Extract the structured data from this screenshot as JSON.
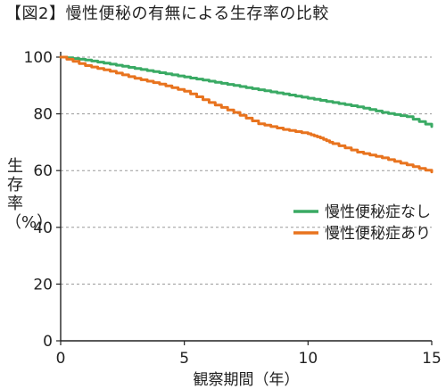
{
  "chart_data": {
    "type": "line",
    "title": "【図2】慢性便秘の有無による生存率の比較",
    "xlabel": "観察期間（年）",
    "ylabel": "生存率（%）",
    "xlim": [
      0,
      15
    ],
    "ylim": [
      0,
      100
    ],
    "x_ticks": [
      "0",
      "5",
      "10",
      "15"
    ],
    "y_ticks": [
      "0",
      "20",
      "40",
      "60",
      "80",
      "100"
    ],
    "grid": "horizontal dashed",
    "legend_position": "right-middle",
    "series": [
      {
        "name": "慢性便秘症なし",
        "color": "#3aaa64",
        "points": [
          [
            0,
            100
          ],
          [
            1,
            99
          ],
          [
            2,
            97.5
          ],
          [
            3,
            96
          ],
          [
            4,
            94.5
          ],
          [
            5,
            93
          ],
          [
            6,
            91.5
          ],
          [
            7,
            90
          ],
          [
            8,
            88.5
          ],
          [
            9,
            87
          ],
          [
            10,
            85.5
          ],
          [
            11,
            84
          ],
          [
            12,
            82.5
          ],
          [
            13,
            80.5
          ],
          [
            14,
            79
          ],
          [
            15,
            75.5
          ]
        ]
      },
      {
        "name": "慢性便秘症あり",
        "color": "#e8731e",
        "points": [
          [
            0,
            100
          ],
          [
            1,
            97
          ],
          [
            2,
            95
          ],
          [
            3,
            92.5
          ],
          [
            4,
            90.5
          ],
          [
            5,
            88
          ],
          [
            6,
            84
          ],
          [
            7,
            80.5
          ],
          [
            8,
            76.5
          ],
          [
            9,
            74.5
          ],
          [
            10,
            73
          ],
          [
            10.5,
            71.5
          ],
          [
            11,
            69.5
          ],
          [
            12,
            66.5
          ],
          [
            13,
            64.5
          ],
          [
            14,
            62
          ],
          [
            15,
            59.5
          ]
        ]
      }
    ]
  }
}
